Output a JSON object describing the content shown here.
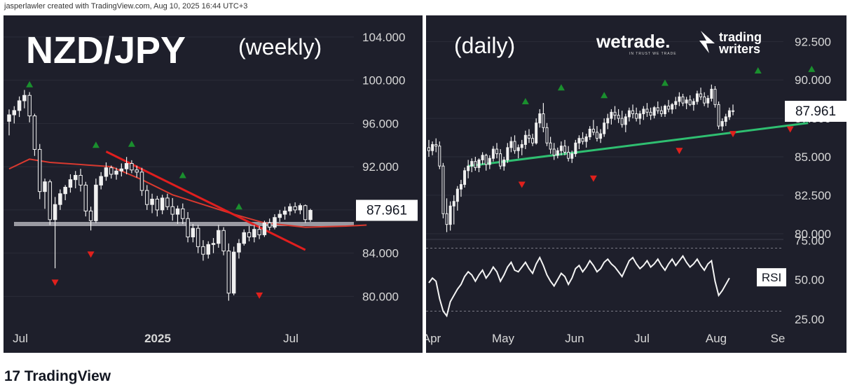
{
  "header": {
    "attribution": "jasperlawler created with TradingView.com, Aug 10, 2025 16:44 UTC+3"
  },
  "footer": {
    "brand": "TradingView",
    "logo_glyph": "17"
  },
  "colors": {
    "background": "#1e1f2b",
    "candle": "#f0f0f0",
    "trend_red": "#e01e1e",
    "ma_red": "#d9392f",
    "support": "#9a9aa2",
    "trend_green": "#2fbf71",
    "up_marker": "#1a8f2e",
    "down_marker": "#e0201c",
    "price_label_bg": "#ffffff"
  },
  "watermarks": {
    "wetrade": "wetrade.",
    "wetrade_tag": "IN TRUST WE TRADE",
    "trading_writers_1": "trading",
    "trading_writers_2": "writers"
  },
  "chart_data": [
    {
      "type": "candlestick",
      "title": "NZD/JPY",
      "subtitle": "(weekly)",
      "y_ticks": [
        "104.000",
        "100.000",
        "96.000",
        "92.000",
        "88.000",
        "84.000",
        "80.000"
      ],
      "ylim": [
        77.5,
        106
      ],
      "x_ticks": [
        "Jul",
        "2025",
        "Jul"
      ],
      "last_price": "87.961",
      "support_level": 86.7,
      "moving_average": [
        [
          0,
          91.8
        ],
        [
          4,
          92.7
        ],
        [
          8,
          92.4
        ],
        [
          14,
          92.2
        ],
        [
          20,
          92.0
        ],
        [
          26,
          90.8
        ],
        [
          32,
          89.4
        ],
        [
          38,
          88.5
        ],
        [
          44,
          87.6
        ],
        [
          50,
          86.8
        ],
        [
          58,
          86.4
        ],
        [
          66,
          86.5
        ],
        [
          70,
          86.6
        ]
      ],
      "trendline": [
        [
          19,
          93.4
        ],
        [
          58,
          84.3
        ]
      ],
      "up_markers": [
        [
          4,
          99.6
        ],
        [
          17,
          94.0
        ],
        [
          24,
          94.1
        ],
        [
          34,
          91.2
        ],
        [
          45,
          88.3
        ]
      ],
      "down_markers": [
        [
          9,
          81.3
        ],
        [
          16,
          83.9
        ],
        [
          49,
          80.1
        ]
      ],
      "candles": [
        [
          96.2,
          97.3,
          94.9,
          96.8
        ],
        [
          96.8,
          97.6,
          96.0,
          97.2
        ],
        [
          97.2,
          98.5,
          96.6,
          98.1
        ],
        [
          98.1,
          99.1,
          97.4,
          98.6
        ],
        [
          98.6,
          98.9,
          96.1,
          96.7
        ],
        [
          96.7,
          96.9,
          93.0,
          93.6
        ],
        [
          93.6,
          94.1,
          89.0,
          89.7
        ],
        [
          89.7,
          90.9,
          88.1,
          90.6
        ],
        [
          90.6,
          90.8,
          86.6,
          87.1
        ],
        [
          87.1,
          89.2,
          82.6,
          88.5
        ],
        [
          88.5,
          89.9,
          88.0,
          89.5
        ],
        [
          89.5,
          90.3,
          88.9,
          90.1
        ],
        [
          90.1,
          91.3,
          89.6,
          90.8
        ],
        [
          90.8,
          91.6,
          90.0,
          91.2
        ],
        [
          91.2,
          91.8,
          89.7,
          90.3
        ],
        [
          90.3,
          90.6,
          87.4,
          87.9
        ],
        [
          87.9,
          88.3,
          86.1,
          87.0
        ],
        [
          87.0,
          90.9,
          86.8,
          90.3
        ],
        [
          90.3,
          91.5,
          89.9,
          91.1
        ],
        [
          91.1,
          92.4,
          90.7,
          91.9
        ],
        [
          91.9,
          92.1,
          90.9,
          91.3
        ],
        [
          91.3,
          91.9,
          90.8,
          91.6
        ],
        [
          91.6,
          92.3,
          91.1,
          91.8
        ],
        [
          91.8,
          92.9,
          91.3,
          92.3
        ],
        [
          92.3,
          92.6,
          91.4,
          91.7
        ],
        [
          91.7,
          92.1,
          91.0,
          91.5
        ],
        [
          91.5,
          91.9,
          89.3,
          89.8
        ],
        [
          89.8,
          90.3,
          88.0,
          88.5
        ],
        [
          88.5,
          89.5,
          87.7,
          89.0
        ],
        [
          89.0,
          89.3,
          87.4,
          88.0
        ],
        [
          88.0,
          89.4,
          87.6,
          89.1
        ],
        [
          89.1,
          89.5,
          88.0,
          88.3
        ],
        [
          88.3,
          89.1,
          87.0,
          87.6
        ],
        [
          87.6,
          88.4,
          86.7,
          88.1
        ],
        [
          88.1,
          88.6,
          86.7,
          87.2
        ],
        [
          87.2,
          87.8,
          85.0,
          85.5
        ],
        [
          85.5,
          86.7,
          85.0,
          86.3
        ],
        [
          86.3,
          86.6,
          84.0,
          84.6
        ],
        [
          84.6,
          85.2,
          83.3,
          83.9
        ],
        [
          83.9,
          85.1,
          83.5,
          84.8
        ],
        [
          84.8,
          85.4,
          84.0,
          84.9
        ],
        [
          84.9,
          86.6,
          84.5,
          86.1
        ],
        [
          86.1,
          86.4,
          83.8,
          84.2
        ],
        [
          84.2,
          84.9,
          79.6,
          80.3
        ],
        [
          80.3,
          84.6,
          80.1,
          84.1
        ],
        [
          84.1,
          85.3,
          83.5,
          84.9
        ],
        [
          84.9,
          86.2,
          84.7,
          85.9
        ],
        [
          85.9,
          86.5,
          85.1,
          85.5
        ],
        [
          85.5,
          86.6,
          85.0,
          86.2
        ],
        [
          86.2,
          86.5,
          85.3,
          85.7
        ],
        [
          85.7,
          87.0,
          85.5,
          86.8
        ],
        [
          86.8,
          87.2,
          86.1,
          86.4
        ],
        [
          86.4,
          87.6,
          86.2,
          87.3
        ],
        [
          87.3,
          88.0,
          86.9,
          87.6
        ],
        [
          87.6,
          88.3,
          87.1,
          87.9
        ],
        [
          87.9,
          88.6,
          87.5,
          88.3
        ],
        [
          88.3,
          88.7,
          87.7,
          88.0
        ],
        [
          88.0,
          88.6,
          87.6,
          88.4
        ],
        [
          88.4,
          88.5,
          86.8,
          87.1
        ],
        [
          87.1,
          88.1,
          86.9,
          87.96
        ]
      ]
    },
    {
      "type": "candlestick",
      "subtitle": "(daily)",
      "y_ticks": [
        "92.500",
        "90.000",
        "87.500",
        "85.000",
        "82.500",
        "80.000"
      ],
      "ylim": [
        79.4,
        94.2
      ],
      "x_ticks": [
        "Apr",
        "May",
        "Jun",
        "Jul",
        "Aug",
        "Se"
      ],
      "last_price": "87.961",
      "trendline": [
        [
          11,
          84.4
        ],
        [
          106,
          87.2
        ]
      ],
      "up_markers": [
        [
          27,
          88.6
        ],
        [
          37,
          89.5
        ],
        [
          49,
          89.0
        ],
        [
          66,
          89.8
        ],
        [
          92,
          90.6
        ],
        [
          107,
          90.7
        ]
      ],
      "down_markers": [
        [
          26,
          83.2
        ],
        [
          46,
          83.6
        ],
        [
          70,
          85.4
        ],
        [
          85,
          86.5
        ],
        [
          101,
          86.8
        ]
      ],
      "candles": [
        [
          85.6,
          86.1,
          85.0,
          85.4
        ],
        [
          85.4,
          86.0,
          85.1,
          85.8
        ],
        [
          85.8,
          86.2,
          85.3,
          85.7
        ],
        [
          85.7,
          86.0,
          84.2,
          84.4
        ],
        [
          84.4,
          84.6,
          81.0,
          81.3
        ],
        [
          81.3,
          82.3,
          80.1,
          80.6
        ],
        [
          80.6,
          82.1,
          80.2,
          81.8
        ],
        [
          81.8,
          82.5,
          80.6,
          82.1
        ],
        [
          82.1,
          83.1,
          81.5,
          82.9
        ],
        [
          82.9,
          83.5,
          82.4,
          83.2
        ],
        [
          83.2,
          84.3,
          83.0,
          84.1
        ],
        [
          84.1,
          84.8,
          83.6,
          84.4
        ],
        [
          84.4,
          84.9,
          84.0,
          84.7
        ],
        [
          84.7,
          85.0,
          84.1,
          84.3
        ],
        [
          84.3,
          84.9,
          84.0,
          84.8
        ],
        [
          84.8,
          85.3,
          84.5,
          85.1
        ],
        [
          85.1,
          85.2,
          84.1,
          84.5
        ],
        [
          84.5,
          85.1,
          84.2,
          84.9
        ],
        [
          84.9,
          85.7,
          84.7,
          85.5
        ],
        [
          85.5,
          85.9,
          84.9,
          85.2
        ],
        [
          85.2,
          85.5,
          84.2,
          84.4
        ],
        [
          84.4,
          85.0,
          84.1,
          84.8
        ],
        [
          84.8,
          85.9,
          84.6,
          85.6
        ],
        [
          85.6,
          86.3,
          85.3,
          86.0
        ],
        [
          86.0,
          86.4,
          85.2,
          85.4
        ],
        [
          85.4,
          85.8,
          84.9,
          85.6
        ],
        [
          85.6,
          86.1,
          85.1,
          85.8
        ],
        [
          85.8,
          86.7,
          85.5,
          86.4
        ],
        [
          86.4,
          86.8,
          85.9,
          86.2
        ],
        [
          86.2,
          86.5,
          85.7,
          85.9
        ],
        [
          85.9,
          87.5,
          85.8,
          87.2
        ],
        [
          87.2,
          88.1,
          86.9,
          87.8
        ],
        [
          87.8,
          88.5,
          86.6,
          86.9
        ],
        [
          86.9,
          87.2,
          85.7,
          85.9
        ],
        [
          85.9,
          86.3,
          85.2,
          85.5
        ],
        [
          85.5,
          85.9,
          84.8,
          85.1
        ],
        [
          85.1,
          85.6,
          84.9,
          85.4
        ],
        [
          85.4,
          86.0,
          85.1,
          85.7
        ],
        [
          85.7,
          86.1,
          85.1,
          85.3
        ],
        [
          85.3,
          85.7,
          84.7,
          84.9
        ],
        [
          84.9,
          85.4,
          84.6,
          85.2
        ],
        [
          85.2,
          86.1,
          85.0,
          85.9
        ],
        [
          85.9,
          86.4,
          85.5,
          86.2
        ],
        [
          86.2,
          86.6,
          85.8,
          86.0
        ],
        [
          86.0,
          86.5,
          85.6,
          86.3
        ],
        [
          86.3,
          87.0,
          86.1,
          86.8
        ],
        [
          86.8,
          87.4,
          86.4,
          86.6
        ],
        [
          86.6,
          87.0,
          86.0,
          86.2
        ],
        [
          86.2,
          86.8,
          85.9,
          86.5
        ],
        [
          86.5,
          87.5,
          86.3,
          87.2
        ],
        [
          87.2,
          87.8,
          86.8,
          87.5
        ],
        [
          87.5,
          88.1,
          87.1,
          87.9
        ],
        [
          87.9,
          88.3,
          87.4,
          87.7
        ],
        [
          87.7,
          88.1,
          87.2,
          87.5
        ],
        [
          87.5,
          88.0,
          86.9,
          87.1
        ],
        [
          87.1,
          87.8,
          86.6,
          87.6
        ],
        [
          87.6,
          88.2,
          87.3,
          88.0
        ],
        [
          88.0,
          88.4,
          87.5,
          87.8
        ],
        [
          87.8,
          88.2,
          87.3,
          87.5
        ],
        [
          87.5,
          88.0,
          87.1,
          87.8
        ],
        [
          87.8,
          88.3,
          87.4,
          88.1
        ],
        [
          88.1,
          88.5,
          87.6,
          87.9
        ],
        [
          87.9,
          88.2,
          87.4,
          87.7
        ],
        [
          87.7,
          88.3,
          87.5,
          88.2
        ],
        [
          88.2,
          88.6,
          87.8,
          88.0
        ],
        [
          88.0,
          88.3,
          87.6,
          87.8
        ],
        [
          87.8,
          88.4,
          87.6,
          88.3
        ],
        [
          88.3,
          88.7,
          87.9,
          88.1
        ],
        [
          88.1,
          88.5,
          87.8,
          88.4
        ],
        [
          88.4,
          88.9,
          88.1,
          88.6
        ],
        [
          88.6,
          89.2,
          88.3,
          88.9
        ],
        [
          88.9,
          89.1,
          88.3,
          88.5
        ],
        [
          88.5,
          88.9,
          88.1,
          88.7
        ],
        [
          88.7,
          89.0,
          88.3,
          88.4
        ],
        [
          88.4,
          88.8,
          88.0,
          88.6
        ],
        [
          88.6,
          89.3,
          88.4,
          89.1
        ],
        [
          89.1,
          89.5,
          88.7,
          88.9
        ],
        [
          88.9,
          89.2,
          88.3,
          88.5
        ],
        [
          88.5,
          89.0,
          88.2,
          88.8
        ],
        [
          88.8,
          89.7,
          88.6,
          89.4
        ],
        [
          89.4,
          89.6,
          88.2,
          88.4
        ],
        [
          88.4,
          88.6,
          86.8,
          87.0
        ],
        [
          87.0,
          87.5,
          86.7,
          87.3
        ],
        [
          87.3,
          87.8,
          87.0,
          87.6
        ],
        [
          87.6,
          88.2,
          87.4,
          88.0
        ],
        [
          88.0,
          88.4,
          87.7,
          87.96
        ]
      ],
      "rsi": {
        "label": "RSI",
        "y_ticks": [
          "75.00",
          "50.00",
          "25.00"
        ],
        "ylim": [
          20,
          80
        ],
        "levels": [
          70,
          30
        ],
        "values": [
          48,
          51,
          49,
          38,
          30,
          27,
          36,
          40,
          44,
          47,
          52,
          55,
          53,
          49,
          53,
          56,
          51,
          54,
          58,
          55,
          49,
          53,
          58,
          61,
          56,
          55,
          58,
          61,
          57,
          54,
          60,
          64,
          59,
          53,
          49,
          46,
          50,
          54,
          52,
          47,
          51,
          57,
          59,
          55,
          58,
          62,
          59,
          55,
          57,
          61,
          63,
          60,
          58,
          55,
          52,
          57,
          62,
          64,
          60,
          57,
          59,
          62,
          58,
          60,
          63,
          59,
          56,
          60,
          63,
          59,
          62,
          65,
          61,
          58,
          60,
          63,
          59,
          56,
          60,
          62,
          49,
          40,
          43,
          47,
          51
        ]
      }
    }
  ]
}
